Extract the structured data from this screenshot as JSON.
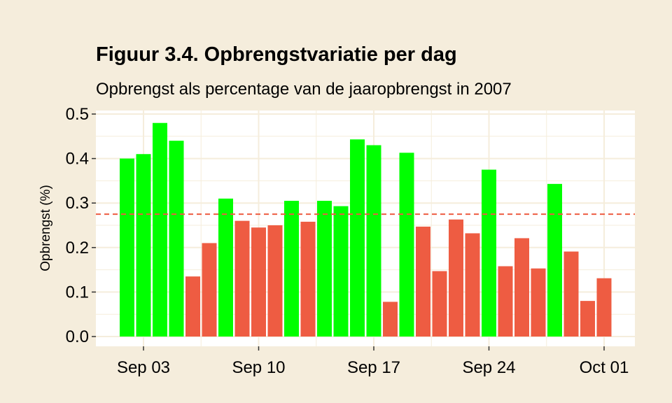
{
  "chart_data": {
    "type": "bar",
    "title": "Figuur 3.4. Opbrengstvariatie per dag",
    "subtitle": "Opbrengst als percentage van de jaaropbrengst in 2007",
    "xlabel": "",
    "ylabel": "Opbrengst (%)",
    "ylim": [
      0,
      0.5
    ],
    "y_ticks": [
      "0.0",
      "0.1",
      "0.2",
      "0.3",
      "0.4",
      "0.5"
    ],
    "x_ticks": [
      "Sep 03",
      "Sep 10",
      "Sep 17",
      "Sep 24",
      "Oct 01"
    ],
    "x_tick_dates": [
      "2007-09-03",
      "2007-09-10",
      "2007-09-17",
      "2007-09-24",
      "2007-10-01"
    ],
    "reference_line": {
      "y": 0.275,
      "style": "dashed",
      "color": "#EE5C42"
    },
    "grid": true,
    "legend": "none",
    "colors": {
      "above": "#00FF00",
      "below": "#EE5C42",
      "panel": "#FFFFFF",
      "background": "#F5EDDC",
      "grid": "#F5EDDC"
    },
    "data": [
      {
        "x": "2007-09-02",
        "y": 0.4
      },
      {
        "x": "2007-09-03",
        "y": 0.41
      },
      {
        "x": "2007-09-04",
        "y": 0.48
      },
      {
        "x": "2007-09-05",
        "y": 0.44
      },
      {
        "x": "2007-09-06",
        "y": 0.135
      },
      {
        "x": "2007-09-07",
        "y": 0.21
      },
      {
        "x": "2007-09-08",
        "y": 0.31
      },
      {
        "x": "2007-09-09",
        "y": 0.26
      },
      {
        "x": "2007-09-10",
        "y": 0.245
      },
      {
        "x": "2007-09-11",
        "y": 0.25
      },
      {
        "x": "2007-09-12",
        "y": 0.305
      },
      {
        "x": "2007-09-13",
        "y": 0.258
      },
      {
        "x": "2007-09-14",
        "y": 0.305
      },
      {
        "x": "2007-09-15",
        "y": 0.293
      },
      {
        "x": "2007-09-16",
        "y": 0.443
      },
      {
        "x": "2007-09-17",
        "y": 0.43
      },
      {
        "x": "2007-09-18",
        "y": 0.078
      },
      {
        "x": "2007-09-19",
        "y": 0.413
      },
      {
        "x": "2007-09-20",
        "y": 0.247
      },
      {
        "x": "2007-09-21",
        "y": 0.147
      },
      {
        "x": "2007-09-22",
        "y": 0.263
      },
      {
        "x": "2007-09-23",
        "y": 0.232
      },
      {
        "x": "2007-09-24",
        "y": 0.375
      },
      {
        "x": "2007-09-25",
        "y": 0.158
      },
      {
        "x": "2007-09-26",
        "y": 0.221
      },
      {
        "x": "2007-09-27",
        "y": 0.153
      },
      {
        "x": "2007-09-28",
        "y": 0.343
      },
      {
        "x": "2007-09-29",
        "y": 0.191
      },
      {
        "x": "2007-09-30",
        "y": 0.08
      },
      {
        "x": "2007-10-01",
        "y": 0.131
      }
    ]
  }
}
